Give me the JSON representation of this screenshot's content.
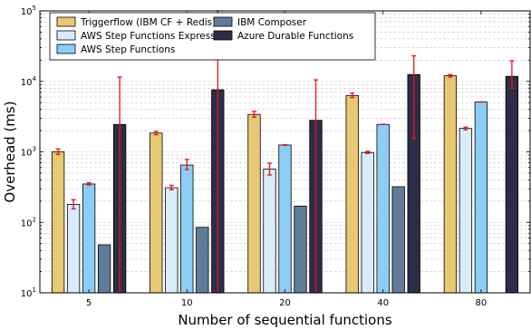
{
  "chart_data": {
    "type": "bar",
    "title": "",
    "xlabel": "Number of sequential functions",
    "ylabel": "Overhead (ms)",
    "yscale": "log",
    "ylim": [
      10,
      100000
    ],
    "grid": true,
    "legend_position": "top",
    "categories": [
      "5",
      "10",
      "20",
      "40",
      "80"
    ],
    "y_ticks": [
      {
        "value": 10,
        "base": "10",
        "exp": "1"
      },
      {
        "value": 100,
        "base": "10",
        "exp": "2"
      },
      {
        "value": 1000,
        "base": "10",
        "exp": "3"
      },
      {
        "value": 10000,
        "base": "10",
        "exp": "4"
      },
      {
        "value": 100000,
        "base": "10",
        "exp": "5"
      }
    ],
    "series": [
      {
        "name": "Triggerflow (IBM CF + Redis)",
        "color": "#e8c872",
        "values": [
          1000,
          1850,
          3400,
          6300,
          12000
        ],
        "err_low": [
          920,
          1750,
          3100,
          5900,
          11500
        ],
        "err_high": [
          1100,
          1950,
          3750,
          6800,
          12500
        ]
      },
      {
        "name": "AWS Step Functions Express",
        "color": "#d9ecfb",
        "values": [
          180,
          310,
          570,
          980,
          2150
        ],
        "err_low": [
          155,
          290,
          470,
          950,
          2050
        ],
        "err_high": [
          210,
          335,
          690,
          1020,
          2250
        ]
      },
      {
        "name": "AWS Step Functions",
        "color": "#8ccdf5",
        "values": [
          350,
          650,
          1250,
          2450,
          5100
        ],
        "err_low": [
          340,
          560,
          1240,
          2440,
          5080
        ],
        "err_high": [
          365,
          780,
          1265,
          2465,
          5120
        ]
      },
      {
        "name": "IBM Composer",
        "color": "#5f7d99",
        "values": [
          48,
          85,
          170,
          320,
          null
        ],
        "err_low": [
          null,
          null,
          null,
          null,
          null
        ],
        "err_high": [
          null,
          null,
          null,
          null,
          null
        ]
      },
      {
        "name": "Azure Durable Functions",
        "color": "#2c2d48",
        "values": [
          2450,
          7600,
          2800,
          12500,
          11800
        ],
        "err_low": [
          10,
          10,
          10,
          1550,
          8000
        ],
        "err_high": [
          11500,
          100000,
          10500,
          23000,
          19500
        ]
      }
    ]
  }
}
